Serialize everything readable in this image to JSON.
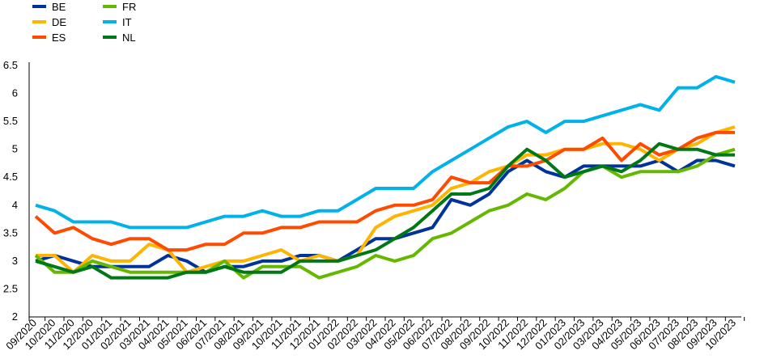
{
  "chart_data": {
    "type": "line",
    "title": "",
    "xlabel": "",
    "ylabel": "",
    "ylim": [
      2,
      6.5
    ],
    "yticks": [
      "2",
      "2.5",
      "3",
      "3.5",
      "4",
      "4.5",
      "5",
      "5.5",
      "6",
      "6.5"
    ],
    "grid": false,
    "legend_position": "top-left",
    "x": [
      "09/2020",
      "10/2020",
      "11/2020",
      "12/2020",
      "01/2021",
      "02/2021",
      "03/2021",
      "04/2021",
      "05/2021",
      "06/2021",
      "07/2021",
      "08/2021",
      "09/2021",
      "10/2021",
      "11/2021",
      "12/2021",
      "01/2022",
      "02/2022",
      "03/2022",
      "04/2022",
      "05/2022",
      "06/2022",
      "07/2022",
      "08/2022",
      "09/2022",
      "10/2022",
      "11/2022",
      "12/2022",
      "01/2023",
      "02/2023",
      "03/2023",
      "04/2023",
      "05/2023",
      "06/2023",
      "07/2023",
      "08/2023",
      "09/2023",
      "10/2023"
    ],
    "xticks": [
      "09/2020",
      "10/2020",
      "11/2020",
      "12/2020",
      "01/2021",
      "02/2021",
      "03/2021",
      "04/2021",
      "05/2021",
      "06/2021",
      "07/2021",
      "08/2021",
      "09/2021",
      "10/2021",
      "11/2021",
      "12/2021",
      "01/2022",
      "02/2022",
      "03/2022",
      "04/2022",
      "05/2022",
      "06/2022",
      "07/2022",
      "08/2022",
      "09/2022",
      "10/2022",
      "11/2022",
      "12/2022",
      "01/2023",
      "02/2023",
      "03/2023",
      "04/2023",
      "05/2023",
      "06/2023",
      "07/2023",
      "08/2023",
      "09/2023",
      "10/2023"
    ],
    "series": [
      {
        "name": "BE",
        "color": "#003399",
        "values": [
          3.0,
          3.1,
          3.0,
          2.9,
          2.9,
          2.9,
          2.9,
          3.1,
          3.0,
          2.8,
          2.9,
          2.9,
          3.0,
          3.0,
          3.1,
          3.1,
          3.0,
          3.2,
          3.4,
          3.4,
          3.5,
          3.6,
          4.1,
          4.0,
          4.2,
          4.6,
          4.8,
          4.6,
          4.5,
          4.7,
          4.7,
          4.7,
          4.7,
          4.8,
          4.6,
          4.8,
          4.8,
          4.7
        ]
      },
      {
        "name": "DE",
        "color": "#FFB400",
        "values": [
          3.1,
          3.1,
          2.8,
          3.1,
          3.0,
          3.0,
          3.3,
          3.2,
          2.8,
          2.9,
          3.0,
          3.0,
          3.1,
          3.2,
          3.0,
          3.1,
          3.0,
          3.1,
          3.6,
          3.8,
          3.9,
          4.0,
          4.3,
          4.4,
          4.6,
          4.7,
          4.9,
          4.9,
          5.0,
          5.0,
          5.1,
          5.1,
          5.0,
          4.8,
          5.0,
          5.1,
          5.3,
          5.4
        ]
      },
      {
        "name": "ES",
        "color": "#FF4B00",
        "values": [
          3.8,
          3.5,
          3.6,
          3.4,
          3.3,
          3.4,
          3.4,
          3.2,
          3.2,
          3.3,
          3.3,
          3.5,
          3.5,
          3.6,
          3.6,
          3.7,
          3.7,
          3.7,
          3.9,
          4.0,
          4.0,
          4.1,
          4.5,
          4.4,
          4.4,
          4.7,
          4.7,
          4.8,
          5.0,
          5.0,
          5.2,
          4.8,
          5.1,
          4.9,
          5.0,
          5.2,
          5.3,
          5.3
        ]
      },
      {
        "name": "FR",
        "color": "#65B800",
        "values": [
          3.1,
          2.8,
          2.8,
          3.0,
          2.9,
          2.8,
          2.8,
          2.8,
          2.8,
          2.8,
          3.0,
          2.7,
          2.9,
          2.9,
          2.9,
          2.7,
          2.8,
          2.9,
          3.1,
          3.0,
          3.1,
          3.4,
          3.5,
          3.7,
          3.9,
          4.0,
          4.2,
          4.1,
          4.3,
          4.6,
          4.7,
          4.5,
          4.6,
          4.6,
          4.6,
          4.7,
          4.9,
          5.0
        ]
      },
      {
        "name": "IT",
        "color": "#00B1EA",
        "values": [
          4.0,
          3.9,
          3.7,
          3.7,
          3.7,
          3.6,
          3.6,
          3.6,
          3.6,
          3.7,
          3.8,
          3.8,
          3.9,
          3.8,
          3.8,
          3.9,
          3.9,
          4.1,
          4.3,
          4.3,
          4.3,
          4.6,
          4.8,
          5.0,
          5.2,
          5.4,
          5.5,
          5.3,
          5.5,
          5.5,
          5.6,
          5.7,
          5.8,
          5.7,
          6.1,
          6.1,
          6.3,
          6.2
        ]
      },
      {
        "name": "NL",
        "color": "#007816",
        "values": [
          3.0,
          2.9,
          2.8,
          2.9,
          2.7,
          2.7,
          2.7,
          2.7,
          2.8,
          2.8,
          2.9,
          2.8,
          2.8,
          2.8,
          3.0,
          3.0,
          3.0,
          3.1,
          3.2,
          3.4,
          3.6,
          3.9,
          4.2,
          4.2,
          4.3,
          4.7,
          5.0,
          4.8,
          4.5,
          4.6,
          4.7,
          4.6,
          4.8,
          5.1,
          5.0,
          5.0,
          4.9,
          4.9
        ]
      }
    ]
  }
}
